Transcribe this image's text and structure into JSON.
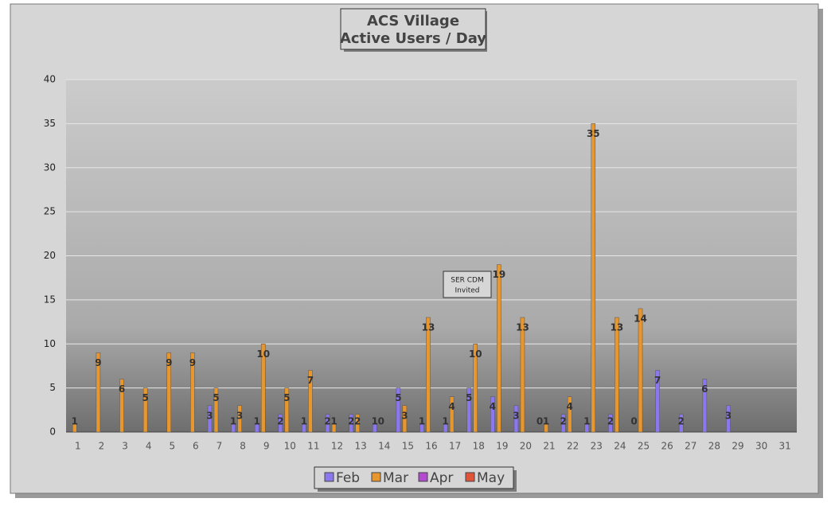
{
  "chart_data": {
    "type": "bar",
    "title": "ACS Village",
    "subtitle": "Active Users / Day",
    "annotation": [
      "SER CDM",
      "Invited"
    ],
    "categories": [
      "1",
      "2",
      "3",
      "4",
      "5",
      "6",
      "7",
      "8",
      "9",
      "10",
      "11",
      "12",
      "13",
      "14",
      "15",
      "16",
      "17",
      "18",
      "19",
      "20",
      "21",
      "22",
      "23",
      "24",
      "25",
      "26",
      "27",
      "28",
      "29",
      "30",
      "31"
    ],
    "series": [
      {
        "name": "Feb",
        "color": "#8b78f0",
        "values": [
          null,
          null,
          null,
          null,
          null,
          null,
          3,
          1,
          1,
          2,
          1,
          2,
          2,
          1,
          5,
          1,
          1,
          5,
          4,
          3,
          0,
          2,
          1,
          2,
          0,
          7,
          2,
          6,
          3,
          null,
          null
        ]
      },
      {
        "name": "Mar",
        "color": "#e8962e",
        "values": [
          1,
          9,
          6,
          5,
          9,
          9,
          5,
          3,
          10,
          5,
          7,
          1,
          2,
          0,
          3,
          13,
          4,
          10,
          19,
          13,
          1,
          4,
          35,
          13,
          14,
          null,
          null,
          null,
          null,
          null,
          null
        ]
      },
      {
        "name": "Apr",
        "color": "#b44ad0",
        "values": [
          null,
          null,
          null,
          null,
          null,
          null,
          null,
          null,
          null,
          null,
          null,
          null,
          null,
          null,
          null,
          null,
          null,
          null,
          null,
          null,
          null,
          null,
          null,
          null,
          null,
          null,
          null,
          null,
          null,
          null,
          null
        ]
      },
      {
        "name": "May",
        "color": "#e0553a",
        "values": [
          null,
          null,
          null,
          null,
          null,
          null,
          null,
          null,
          null,
          null,
          null,
          null,
          null,
          null,
          null,
          null,
          null,
          null,
          null,
          null,
          null,
          null,
          null,
          null,
          null,
          null,
          null,
          null,
          null,
          null,
          null
        ]
      }
    ],
    "ylim": [
      0,
      40
    ],
    "yticks": [
      0,
      5,
      10,
      15,
      20,
      25,
      30,
      35,
      40
    ],
    "grid": true,
    "legend": "bottom"
  }
}
